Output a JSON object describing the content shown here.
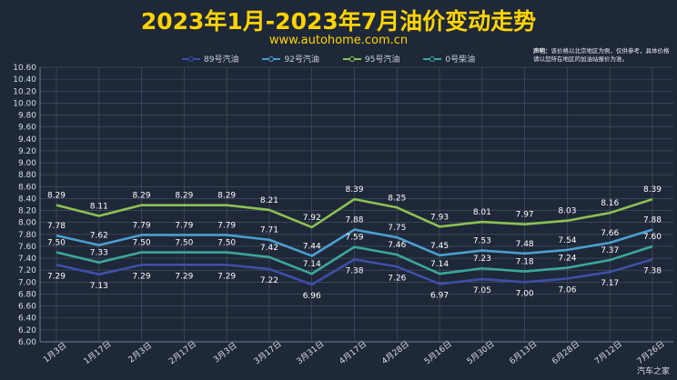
{
  "header": {
    "title": "2023年1月-2023年7月油价变动走势",
    "subtitle": "www.autohome.com.cn"
  },
  "notice": {
    "label": "声明：",
    "text": "该价格以北京地区为例，仅供参考，具体价格请以您所在地区的加油站报价为准。"
  },
  "watermark": "汽车之家",
  "colors": {
    "background": "#1f2838",
    "title": "#ffd400",
    "grid": "#4a5568",
    "s89": "#3d4fa8",
    "s92": "#4b9fd0",
    "s95": "#8cc152",
    "s0": "#3aa89a"
  },
  "chart_data": {
    "type": "line",
    "categories": [
      "1月3日",
      "1月17日",
      "2月3日",
      "2月17日",
      "3月3日",
      "3月17日",
      "3月31日",
      "4月17日",
      "4月28日",
      "5月16日",
      "5月30日",
      "6月13日",
      "6月28日",
      "7月12日",
      "7月26日"
    ],
    "ylim": [
      6.0,
      10.6
    ],
    "yticks": [
      "6.00",
      "6.20",
      "6.40",
      "6.60",
      "6.80",
      "7.00",
      "7.20",
      "7.40",
      "7.60",
      "7.80",
      "8.00",
      "8.20",
      "8.40",
      "8.60",
      "8.80",
      "9.00",
      "9.20",
      "9.40",
      "9.60",
      "9.80",
      "10.00",
      "10.20",
      "10.40",
      "10.60"
    ],
    "grid": true,
    "legend_position": "top",
    "series": [
      {
        "name": "89号汽油",
        "color_key": "s89",
        "values": [
          7.29,
          7.13,
          7.29,
          7.29,
          7.29,
          7.22,
          6.96,
          7.38,
          7.26,
          6.97,
          7.05,
          7.0,
          7.06,
          7.17,
          7.38
        ],
        "labels": [
          "7.29",
          "7.13",
          "7.29",
          "7.29",
          "7.29",
          "7.22",
          "6.96",
          "7.38",
          "7.26",
          "6.97",
          "7.05",
          "7.00",
          "7.06",
          "7.17",
          "7.38"
        ],
        "label_pos": "below"
      },
      {
        "name": "92号汽油",
        "color_key": "s92",
        "values": [
          7.78,
          7.62,
          7.79,
          7.79,
          7.79,
          7.71,
          7.44,
          7.88,
          7.75,
          7.45,
          7.53,
          7.48,
          7.54,
          7.66,
          7.88
        ],
        "labels": [
          "7.78",
          "7.62",
          "7.79",
          "7.79",
          "7.79",
          "7.71",
          "7.44",
          "7.88",
          "7.75",
          "7.45",
          "7.53",
          "7.48",
          "7.54",
          "7.66",
          "7.88"
        ],
        "label_pos": "above"
      },
      {
        "name": "95号汽油",
        "color_key": "s95",
        "values": [
          8.29,
          8.11,
          8.29,
          8.29,
          8.29,
          8.21,
          7.92,
          8.39,
          8.25,
          7.93,
          8.01,
          7.97,
          8.03,
          8.16,
          8.39
        ],
        "labels": [
          "8.29",
          "8.11",
          "8.29",
          "8.29",
          "8.29",
          "8.21",
          "7.92",
          "8.39",
          "8.25",
          "7.93",
          "8.01",
          "7.97",
          "8.03",
          "8.16",
          "8.39"
        ],
        "label_pos": "above"
      },
      {
        "name": "0号柴油",
        "color_key": "s0",
        "values": [
          7.5,
          7.33,
          7.5,
          7.5,
          7.5,
          7.42,
          7.14,
          7.59,
          7.46,
          7.14,
          7.23,
          7.18,
          7.24,
          7.37,
          7.6
        ],
        "labels": [
          "7.50",
          "7.33",
          "7.50",
          "7.50",
          "7.50",
          "7.42",
          "7.14",
          "7.59",
          "7.46",
          "7.14",
          "7.23",
          "7.18",
          "7.24",
          "7.37",
          "7.60"
        ],
        "label_pos": "above"
      }
    ]
  }
}
